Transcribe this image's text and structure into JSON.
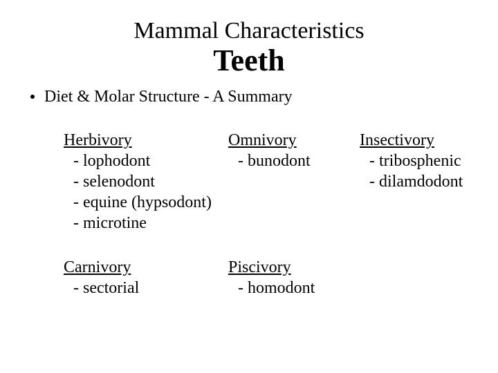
{
  "supertitle": "Mammal Characteristics",
  "title": "Teeth",
  "bullet": "Diet & Molar Structure - A Summary",
  "groups": {
    "herbivory": {
      "heading": "Herbivory",
      "items": [
        "- lophodont",
        "- selenodont",
        "- equine (hypsodont)",
        "- microtine"
      ]
    },
    "omnivory": {
      "heading": "Omnivory",
      "items": [
        "- bunodont"
      ]
    },
    "insectivory": {
      "heading": "Insectivory",
      "items": [
        "- tribosphenic",
        "- dilamdodont"
      ]
    },
    "carnivory": {
      "heading": "Carnivory",
      "items": [
        "- sectorial"
      ]
    },
    "piscivory": {
      "heading": "Piscivory",
      "items": [
        "- homodont"
      ]
    }
  },
  "style": {
    "background_color": "#ffffff",
    "text_color": "#000000",
    "font_family": "Times New Roman",
    "supertitle_fontsize": 34,
    "title_fontsize": 44,
    "title_fontweight": "bold",
    "body_fontsize": 24,
    "heading_underline": true
  }
}
